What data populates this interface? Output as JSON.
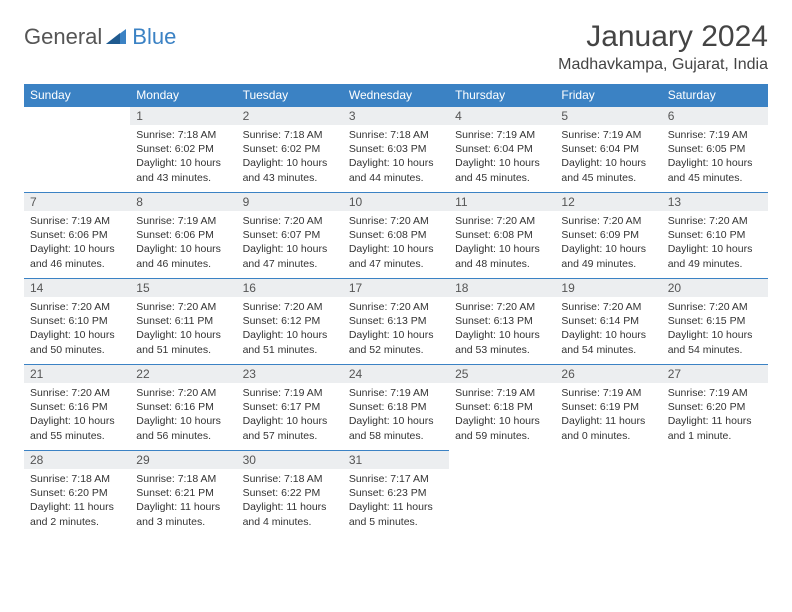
{
  "brand": {
    "part1": "General",
    "part2": "Blue"
  },
  "title": "January 2024",
  "location": "Madhavkampa, Gujarat, India",
  "colors": {
    "header_bg": "#3b82c4",
    "header_fg": "#ffffff",
    "daynum_bg": "#eceef0",
    "text": "#333333",
    "border": "#3b82c4"
  },
  "weekdays": [
    "Sunday",
    "Monday",
    "Tuesday",
    "Wednesday",
    "Thursday",
    "Friday",
    "Saturday"
  ],
  "weeks": [
    [
      null,
      {
        "n": "1",
        "sr": "7:18 AM",
        "ss": "6:02 PM",
        "dl": "10 hours and 43 minutes."
      },
      {
        "n": "2",
        "sr": "7:18 AM",
        "ss": "6:02 PM",
        "dl": "10 hours and 43 minutes."
      },
      {
        "n": "3",
        "sr": "7:18 AM",
        "ss": "6:03 PM",
        "dl": "10 hours and 44 minutes."
      },
      {
        "n": "4",
        "sr": "7:19 AM",
        "ss": "6:04 PM",
        "dl": "10 hours and 45 minutes."
      },
      {
        "n": "5",
        "sr": "7:19 AM",
        "ss": "6:04 PM",
        "dl": "10 hours and 45 minutes."
      },
      {
        "n": "6",
        "sr": "7:19 AM",
        "ss": "6:05 PM",
        "dl": "10 hours and 45 minutes."
      }
    ],
    [
      {
        "n": "7",
        "sr": "7:19 AM",
        "ss": "6:06 PM",
        "dl": "10 hours and 46 minutes."
      },
      {
        "n": "8",
        "sr": "7:19 AM",
        "ss": "6:06 PM",
        "dl": "10 hours and 46 minutes."
      },
      {
        "n": "9",
        "sr": "7:20 AM",
        "ss": "6:07 PM",
        "dl": "10 hours and 47 minutes."
      },
      {
        "n": "10",
        "sr": "7:20 AM",
        "ss": "6:08 PM",
        "dl": "10 hours and 47 minutes."
      },
      {
        "n": "11",
        "sr": "7:20 AM",
        "ss": "6:08 PM",
        "dl": "10 hours and 48 minutes."
      },
      {
        "n": "12",
        "sr": "7:20 AM",
        "ss": "6:09 PM",
        "dl": "10 hours and 49 minutes."
      },
      {
        "n": "13",
        "sr": "7:20 AM",
        "ss": "6:10 PM",
        "dl": "10 hours and 49 minutes."
      }
    ],
    [
      {
        "n": "14",
        "sr": "7:20 AM",
        "ss": "6:10 PM",
        "dl": "10 hours and 50 minutes."
      },
      {
        "n": "15",
        "sr": "7:20 AM",
        "ss": "6:11 PM",
        "dl": "10 hours and 51 minutes."
      },
      {
        "n": "16",
        "sr": "7:20 AM",
        "ss": "6:12 PM",
        "dl": "10 hours and 51 minutes."
      },
      {
        "n": "17",
        "sr": "7:20 AM",
        "ss": "6:13 PM",
        "dl": "10 hours and 52 minutes."
      },
      {
        "n": "18",
        "sr": "7:20 AM",
        "ss": "6:13 PM",
        "dl": "10 hours and 53 minutes."
      },
      {
        "n": "19",
        "sr": "7:20 AM",
        "ss": "6:14 PM",
        "dl": "10 hours and 54 minutes."
      },
      {
        "n": "20",
        "sr": "7:20 AM",
        "ss": "6:15 PM",
        "dl": "10 hours and 54 minutes."
      }
    ],
    [
      {
        "n": "21",
        "sr": "7:20 AM",
        "ss": "6:16 PM",
        "dl": "10 hours and 55 minutes."
      },
      {
        "n": "22",
        "sr": "7:20 AM",
        "ss": "6:16 PM",
        "dl": "10 hours and 56 minutes."
      },
      {
        "n": "23",
        "sr": "7:19 AM",
        "ss": "6:17 PM",
        "dl": "10 hours and 57 minutes."
      },
      {
        "n": "24",
        "sr": "7:19 AM",
        "ss": "6:18 PM",
        "dl": "10 hours and 58 minutes."
      },
      {
        "n": "25",
        "sr": "7:19 AM",
        "ss": "6:18 PM",
        "dl": "10 hours and 59 minutes."
      },
      {
        "n": "26",
        "sr": "7:19 AM",
        "ss": "6:19 PM",
        "dl": "11 hours and 0 minutes."
      },
      {
        "n": "27",
        "sr": "7:19 AM",
        "ss": "6:20 PM",
        "dl": "11 hours and 1 minute."
      }
    ],
    [
      {
        "n": "28",
        "sr": "7:18 AM",
        "ss": "6:20 PM",
        "dl": "11 hours and 2 minutes."
      },
      {
        "n": "29",
        "sr": "7:18 AM",
        "ss": "6:21 PM",
        "dl": "11 hours and 3 minutes."
      },
      {
        "n": "30",
        "sr": "7:18 AM",
        "ss": "6:22 PM",
        "dl": "11 hours and 4 minutes."
      },
      {
        "n": "31",
        "sr": "7:17 AM",
        "ss": "6:23 PM",
        "dl": "11 hours and 5 minutes."
      },
      null,
      null,
      null
    ]
  ],
  "labels": {
    "sunrise": "Sunrise:",
    "sunset": "Sunset:",
    "daylight": "Daylight:"
  }
}
